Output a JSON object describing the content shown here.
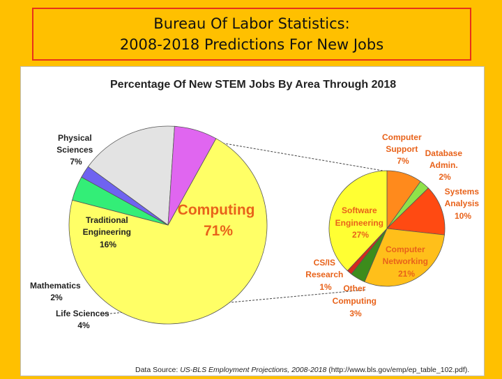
{
  "banner": {
    "line1": "Bureau Of Labor Statistics:",
    "line2": "2008-2018 Predictions For New Jobs"
  },
  "chart_data": [
    {
      "type": "pie",
      "title": "Percentage Of New STEM Jobs By Area Through 2018",
      "slices": [
        {
          "label": "Computing",
          "value": 71,
          "color": "#FFFF66"
        },
        {
          "label": "Life Sciences",
          "value": 4,
          "color": "#33EE77"
        },
        {
          "label": "Mathematics",
          "value": 2,
          "color": "#6F63F0"
        },
        {
          "label": "Traditional Engineering",
          "value": 16,
          "color": "#E3E3E3"
        },
        {
          "label": "Physical Sciences",
          "value": 7,
          "color": "#E066F0"
        }
      ]
    },
    {
      "type": "pie",
      "title": "",
      "slices": [
        {
          "label": "Computer Support",
          "value": 7,
          "color": "#FF8A1C"
        },
        {
          "label": "Database Admin.",
          "value": 2,
          "color": "#8FE24A"
        },
        {
          "label": "Systems Analysis",
          "value": 10,
          "color": "#FF4A12"
        },
        {
          "label": "Computer Networking",
          "value": 21,
          "color": "#FFBF1A"
        },
        {
          "label": "Other Computing",
          "value": 3,
          "color": "#3C8C1C"
        },
        {
          "label": "CS/IS Research",
          "value": 1,
          "color": "#D42A1E"
        },
        {
          "label": "Software Engineering",
          "value": 27,
          "color": "#FFFF33"
        }
      ]
    }
  ],
  "labels": {
    "physical": [
      "Physical",
      "Sciences",
      "7%"
    ],
    "traditional": [
      "Traditional",
      "Engineering",
      "16%"
    ],
    "mathematics": [
      "Mathematics",
      "2%"
    ],
    "life": [
      "Life Sciences",
      "4%"
    ],
    "computing": [
      "Computing",
      "71%"
    ],
    "support": [
      "Computer",
      "Support",
      "7%"
    ],
    "database": [
      "Database",
      "Admin.",
      "2%"
    ],
    "systems": [
      "Systems",
      "Analysis",
      "10%"
    ],
    "software": [
      "Software",
      "Engineering",
      "27%"
    ],
    "networking": [
      "Computer",
      "Networking",
      "21%"
    ],
    "research": [
      "CS/IS",
      "Research",
      "1%"
    ],
    "other": [
      "Other",
      "Computing",
      "3%"
    ]
  },
  "source": {
    "prefix": "Data Source: ",
    "italic": "US-BLS Employment Projections, 2008-2018",
    "suffix": " (http://www.bls.gov/emp/ep_table_102.pdf)."
  }
}
